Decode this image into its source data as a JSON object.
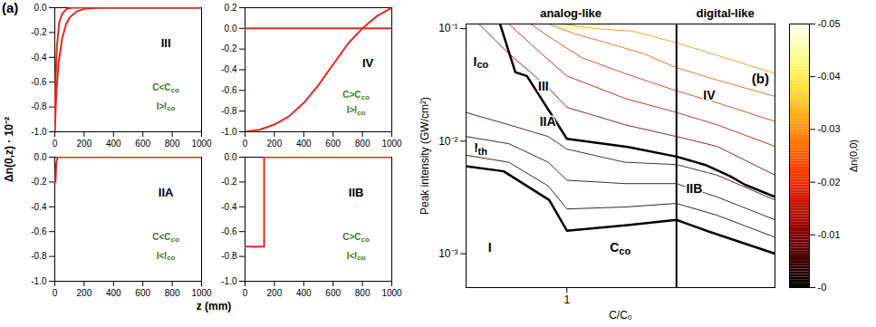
{
  "chart_data": [
    {
      "type": "line",
      "title": "(a)",
      "x_label": "z (mm)",
      "y_label": "Δn(0,z) · 10⁻²",
      "xlim": [
        0,
        1000
      ],
      "xticks": [
        0,
        200,
        400,
        600,
        800,
        1000
      ],
      "panels": [
        {
          "label": {
            "text": "III",
            "x": 760,
            "y": -0.3
          },
          "conditions": [
            {
              "text": "C<C",
              "subscript": "co",
              "x": 760,
              "y": -0.65,
              "color": "#3b7d23"
            },
            {
              "text": "I>I",
              "subscript": "co",
              "x": 760,
              "y": -0.8,
              "color": "#3b7d23"
            }
          ],
          "ylim": [
            -1,
            0
          ],
          "yticks": [
            {
              "value": 0,
              "label": "0.0"
            },
            -0.2,
            -0.4,
            -0.6,
            -0.8,
            {
              "value": -1,
              "label": "-1.0"
            }
          ],
          "series": [
            {
              "color": "#e8281e",
              "x": [
                0,
                10,
                25,
                50,
                75,
                100,
                150,
                200,
                300,
                1000
              ],
              "values": [
                -1.0,
                -0.7,
                -0.45,
                -0.25,
                -0.14,
                -0.08,
                -0.03,
                -0.01,
                0.0,
                0.0
              ]
            },
            {
              "color": "#e8281e",
              "x": [
                0,
                5,
                15,
                30,
                50,
                80,
                120,
                1000
              ],
              "values": [
                -1.0,
                -0.6,
                -0.3,
                -0.12,
                -0.05,
                -0.01,
                0.0,
                0.0
              ]
            }
          ]
        },
        {
          "label": {
            "text": "IV",
            "x": 840,
            "y": -0.35
          },
          "conditions": [
            {
              "text": "C>C",
              "subscript": "co",
              "x": 760,
              "y": -0.65,
              "color": "#3b7d23"
            },
            {
              "text": "I>I",
              "subscript": "co",
              "x": 760,
              "y": -0.8,
              "color": "#3b7d23"
            }
          ],
          "ylim": [
            -1,
            0.2
          ],
          "yticks": [
            0.2,
            {
              "value": 0,
              "label": "0.0"
            },
            -0.2,
            -0.4,
            -0.6,
            -0.8,
            {
              "value": -1,
              "label": "-1.0"
            }
          ],
          "series": [
            {
              "color": "#e8281e",
              "x": [
                0,
                100,
                200,
                300,
                400,
                500,
                600,
                700,
                800,
                900,
                1000
              ],
              "values": [
                -1.0,
                -0.98,
                -0.93,
                -0.85,
                -0.72,
                -0.55,
                -0.35,
                -0.15,
                0.0,
                0.12,
                0.2
              ]
            },
            {
              "color": "#e8281e",
              "x": [
                0,
                1000
              ],
              "values": [
                0,
                0
              ]
            }
          ]
        },
        {
          "label": {
            "text": "IIA",
            "x": 760,
            "y": -0.3
          },
          "conditions": [
            {
              "text": "C<C",
              "subscript": "co",
              "x": 760,
              "y": -0.65,
              "color": "#3b7d23"
            },
            {
              "text": "I<I",
              "subscript": "co",
              "x": 760,
              "y": -0.8,
              "color": "#3b7d23"
            }
          ],
          "ylim": [
            -1,
            0
          ],
          "yticks": [
            {
              "value": 0,
              "label": "0.0"
            },
            -0.2,
            -0.4,
            -0.6,
            -0.8,
            {
              "value": -1,
              "label": "-1.0"
            }
          ],
          "series": [
            {
              "color": "#e8281e",
              "x": [
                0,
                5,
                10,
                20,
                1000
              ],
              "values": [
                -0.2,
                -0.2,
                -0.05,
                0,
                0
              ]
            }
          ]
        },
        {
          "label": {
            "text": "IIB",
            "x": 760,
            "y": -0.3
          },
          "conditions": [
            {
              "text": "C>C",
              "subscript": "co",
              "x": 760,
              "y": -0.65,
              "color": "#3b7d23"
            },
            {
              "text": "I<I",
              "subscript": "co",
              "x": 760,
              "y": -0.8,
              "color": "#3b7d23"
            }
          ],
          "ylim": [
            -1,
            0
          ],
          "yticks": [
            {
              "value": 0,
              "label": "0.0"
            },
            -0.2,
            -0.4,
            -0.6,
            -0.8,
            {
              "value": -1,
              "label": "-1.0"
            }
          ],
          "series": [
            {
              "color": "#e8281e",
              "x": [
                0,
                130,
                130,
                1000
              ],
              "values": [
                -0.72,
                -0.72,
                0,
                0
              ]
            }
          ]
        }
      ]
    },
    {
      "type": "contour",
      "title": "(b)",
      "x_label": "C/C₀",
      "y_label": "Peak intensity (GW/cm²)",
      "log": true,
      "xlim": [
        0.3,
        12
      ],
      "xticks": [
        1
      ],
      "ylim": [
        0.0005,
        0.11
      ],
      "yticks": [
        {
          "value": 0.001,
          "label": "10⁻³"
        },
        {
          "value": 0.01,
          "label": "10⁻²"
        },
        {
          "value": 0.1,
          "label": "10⁻¹"
        }
      ],
      "divider": 3.7,
      "region_titles": [
        "analog-like",
        "digital-like"
      ],
      "boundaries": [
        {
          "color": "#000000",
          "x": [
            0.3,
            0.47,
            0.81,
            1,
            2.07,
            3.7,
            5.3,
            12
          ],
          "values": [
            0.006,
            0.0054,
            0.003,
            0.0016,
            0.0018,
            0.002,
            0.0016,
            0.001
          ]
        },
        {
          "color": "#000000",
          "x": [
            0.45,
            0.54,
            0.62,
            1,
            2.07,
            3.7,
            5.3,
            7,
            8.4,
            12
          ],
          "values": [
            0.11,
            0.041,
            0.038,
            0.0105,
            0.0089,
            0.0073,
            0.0061,
            0.0049,
            0.0041,
            0.0032
          ]
        }
      ],
      "contours": [
        {
          "level": -0.002,
          "x": [
            0.3,
            0.5,
            0.8,
            1,
            2,
            3.7,
            6,
            12
          ],
          "values": [
            0.0075,
            0.0065,
            0.004,
            0.0025,
            0.0026,
            0.0028,
            0.0022,
            0.0014
          ]
        },
        {
          "level": -0.004,
          "x": [
            0.3,
            0.5,
            0.8,
            1,
            2,
            3.7,
            6,
            12
          ],
          "values": [
            0.011,
            0.0095,
            0.0065,
            0.0045,
            0.0042,
            0.0042,
            0.0032,
            0.002
          ]
        },
        {
          "level": -0.006,
          "x": [
            0.3,
            0.5,
            0.8,
            1,
            2,
            3.7,
            6,
            12
          ],
          "values": [
            0.018,
            0.014,
            0.011,
            0.0085,
            0.0065,
            0.0062,
            0.005,
            0.003
          ]
        },
        {
          "level": -0.01,
          "x": [
            0.35,
            0.5,
            0.8,
            1,
            2,
            3.7,
            6,
            12
          ],
          "values": [
            0.11,
            0.06,
            0.03,
            0.02,
            0.014,
            0.011,
            0.009,
            0.005
          ]
        },
        {
          "level": -0.015,
          "x": [
            0.5,
            0.7,
            1,
            2,
            3.7,
            6,
            12
          ],
          "values": [
            0.11,
            0.065,
            0.038,
            0.024,
            0.018,
            0.014,
            0.009
          ]
        },
        {
          "level": -0.02,
          "x": [
            0.65,
            0.85,
            1.2,
            2,
            3.7,
            6,
            12
          ],
          "values": [
            0.11,
            0.08,
            0.055,
            0.04,
            0.028,
            0.022,
            0.015
          ]
        },
        {
          "level": -0.025,
          "x": [
            0.8,
            1.1,
            1.6,
            2.5,
            3.7,
            6,
            12
          ],
          "values": [
            0.11,
            0.09,
            0.075,
            0.06,
            0.045,
            0.035,
            0.025
          ]
        },
        {
          "level": -0.03,
          "x": [
            0.95,
            1.4,
            2.2,
            3.7,
            6,
            12
          ],
          "values": [
            0.11,
            0.1,
            0.095,
            0.075,
            0.058,
            0.04
          ]
        },
        {
          "level": -0.04,
          "x": [
            0.9,
            1.0,
            1.2,
            1.5
          ],
          "values": [
            0.11,
            0.1,
            0.1,
            0.11
          ]
        }
      ],
      "annotations": [
        {
          "text": "III",
          "x": 0.76,
          "y": 0.03
        },
        {
          "text": "IIA",
          "x": 0.8,
          "y": 0.0145
        },
        {
          "text": "IV",
          "x": 5.5,
          "y": 0.025
        },
        {
          "text": "IIB",
          "x": 4.6,
          "y": 0.0037
        },
        {
          "text": "I",
          "x": 0.4,
          "y": 0.0011
        },
        {
          "text": "I",
          "subscript": "co",
          "x": 0.36,
          "y": 0.05
        },
        {
          "text": "I",
          "subscript": "th",
          "x": 0.36,
          "y": 0.0085
        },
        {
          "text": "C",
          "subscript": "co",
          "x": 1.9,
          "y": 0.0011
        }
      ],
      "colorbar": {
        "label": "Δn(0,0)",
        "lim": [
          -0.05,
          0
        ],
        "ticks": [
          -0.05,
          -0.04,
          -0.03,
          -0.02,
          -0.01,
          {
            "value": 0,
            "label": "-0"
          }
        ]
      }
    }
  ]
}
